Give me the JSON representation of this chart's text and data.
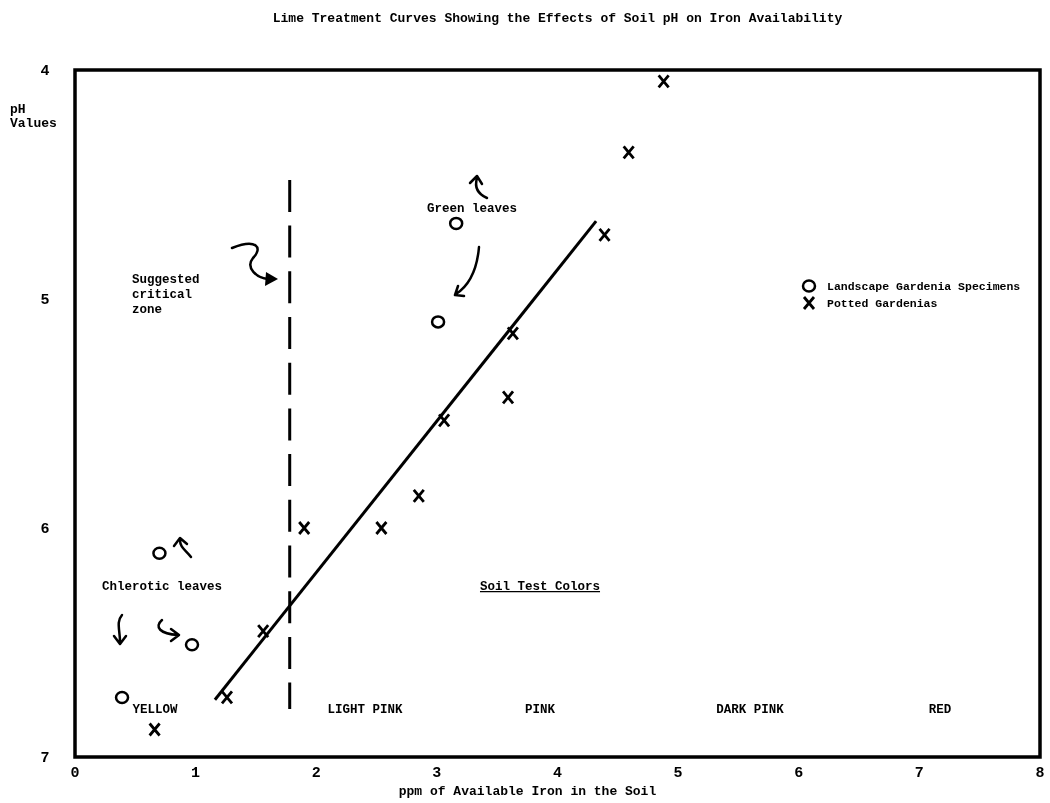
{
  "chart_data": {
    "type": "scatter",
    "title": "Lime Treatment Curves Showing the Effects of Soil pH on Iron Availability",
    "xlabel": "ppm of Available Iron in the Soil",
    "ylabel": "pH Values",
    "xlim": [
      0,
      8
    ],
    "xticks": [
      0,
      1,
      2,
      3,
      4,
      5,
      6,
      7,
      8
    ],
    "ylim": [
      7,
      4
    ],
    "yticks": [
      4,
      5,
      6,
      7
    ],
    "legend": "right",
    "grid": false,
    "series": [
      {
        "name": "Landscape Gardenia Specimens",
        "color": "#000000",
        "marker": "circle",
        "x": [
          0.39,
          0.97,
          0.7,
          3.01,
          3.16
        ],
        "values": [
          6.74,
          6.51,
          6.11,
          5.1,
          4.67
        ]
      },
      {
        "name": "Potted Gardenias",
        "color": "#000000",
        "marker": "cross",
        "x": [
          0.66,
          1.26,
          1.56,
          1.9,
          2.54,
          2.85,
          3.06,
          3.59,
          3.63,
          4.39,
          4.59,
          4.88
        ],
        "values": [
          6.88,
          6.74,
          6.45,
          6.0,
          6.0,
          5.86,
          5.53,
          5.43,
          5.15,
          4.72,
          4.36,
          4.05
        ]
      },
      {
        "type": "line",
        "color": "#000000",
        "line_style": "solid",
        "x": [
          1.16,
          4.32
        ],
        "values": [
          6.75,
          4.66
        ]
      },
      {
        "type": "line",
        "color": "#000000",
        "line_style": "dashed",
        "x": [
          1.78,
          1.78
        ],
        "values": [
          4.48,
          6.79
        ]
      }
    ],
    "annotations": [
      "Suggested critical zone",
      "Green leaves",
      "Chlerotic leaves",
      "Soil Test Colors",
      "YELLOW",
      "LIGHT PINK",
      "PINK",
      "DARK PINK",
      "RED"
    ]
  }
}
